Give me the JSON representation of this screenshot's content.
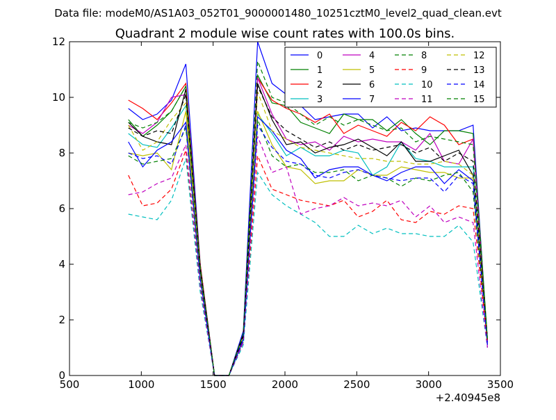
{
  "supertitle": "Data file: modeM0/AS1A03_052T01_9000001480_10251cztM0_level2_quad_clean.evt",
  "chart_data": {
    "type": "line",
    "title": "Quadrant 2 module wise count rates with 100.0s bins.",
    "xlabel": "",
    "ylabel": "",
    "x_offset_label": "+2.40945e8",
    "xlim": [
      500,
      3500
    ],
    "ylim": [
      0,
      12
    ],
    "x_ticks": [
      "500",
      "1000",
      "1500",
      "2000",
      "2500",
      "3000",
      "3500"
    ],
    "y_ticks": [
      "0",
      "2",
      "4",
      "6",
      "8",
      "10",
      "12"
    ],
    "grid": false,
    "legend_placement": "top-right",
    "x": [
      910,
      1010,
      1110,
      1210,
      1310,
      1410,
      1510,
      1610,
      1710,
      1810,
      1910,
      2010,
      2110,
      2210,
      2310,
      2410,
      2510,
      2610,
      2710,
      2810,
      2910,
      3010,
      3110,
      3210,
      3310,
      3410
    ],
    "series": [
      {
        "name": "0",
        "color": "#0000ff",
        "dash": "solid",
        "values": [
          9.6,
          9.2,
          9.4,
          9.9,
          11.2,
          4.0,
          0.0,
          0.0,
          1.6,
          12.0,
          10.5,
          10.1,
          9.7,
          9.2,
          9.3,
          9.4,
          9.4,
          8.9,
          9.3,
          8.8,
          8.9,
          8.8,
          8.8,
          8.8,
          9.0,
          1.2
        ]
      },
      {
        "name": "1",
        "color": "#008000",
        "dash": "solid",
        "values": [
          9.2,
          8.6,
          9.0,
          9.5,
          10.4,
          3.9,
          0.0,
          0.0,
          1.4,
          10.8,
          9.8,
          9.7,
          9.1,
          8.9,
          8.7,
          9.4,
          9.2,
          9.2,
          8.8,
          9.2,
          8.7,
          8.3,
          8.8,
          8.8,
          8.7,
          1.3
        ]
      },
      {
        "name": "2",
        "color": "#ff0000",
        "dash": "solid",
        "values": [
          9.9,
          9.6,
          9.2,
          9.8,
          10.5,
          4.0,
          0.0,
          0.0,
          1.5,
          10.7,
          9.9,
          9.6,
          9.4,
          9.1,
          9.4,
          8.7,
          9.0,
          8.8,
          8.6,
          9.1,
          8.8,
          9.3,
          9.0,
          8.3,
          8.5,
          1.1
        ]
      },
      {
        "name": "3",
        "color": "#00bfbf",
        "dash": "solid",
        "values": [
          8.7,
          8.3,
          8.2,
          8.9,
          9.7,
          3.6,
          0.0,
          0.0,
          1.3,
          9.4,
          8.7,
          7.9,
          8.2,
          7.9,
          7.9,
          8.1,
          8.0,
          7.2,
          7.5,
          8.4,
          7.8,
          7.7,
          7.5,
          7.5,
          7.5,
          1.1
        ]
      },
      {
        "name": "4",
        "color": "#bf00bf",
        "dash": "solid",
        "values": [
          9.0,
          8.7,
          9.1,
          10.0,
          10.1,
          3.9,
          0.0,
          0.0,
          1.5,
          10.7,
          9.4,
          8.5,
          8.3,
          8.4,
          8.1,
          8.6,
          8.4,
          8.5,
          8.4,
          8.4,
          8.1,
          8.7,
          7.7,
          7.6,
          8.5,
          1.0
        ]
      },
      {
        "name": "5",
        "color": "#bfbf00",
        "dash": "solid",
        "values": [
          8.0,
          7.9,
          8.0,
          7.4,
          9.5,
          3.6,
          0.0,
          0.0,
          1.3,
          9.5,
          8.3,
          7.5,
          7.4,
          6.9,
          7.0,
          7.0,
          7.4,
          7.2,
          7.2,
          7.5,
          7.4,
          7.3,
          7.3,
          7.1,
          7.1,
          1.2
        ]
      },
      {
        "name": "6",
        "color": "#000000",
        "dash": "solid",
        "values": [
          9.1,
          8.6,
          8.4,
          8.3,
          10.3,
          3.9,
          0.0,
          0.0,
          1.5,
          10.5,
          9.2,
          8.3,
          8.4,
          8.0,
          8.2,
          8.3,
          8.5,
          8.2,
          7.9,
          8.4,
          7.7,
          7.7,
          7.9,
          8.1,
          7.2,
          1.3
        ]
      },
      {
        "name": "7",
        "color": "#0000ff",
        "dash": "solid",
        "values": [
          8.4,
          7.5,
          8.1,
          8.4,
          9.1,
          3.5,
          0.0,
          0.0,
          1.3,
          9.3,
          8.8,
          8.1,
          7.8,
          7.1,
          7.4,
          7.5,
          7.5,
          7.2,
          7.0,
          7.3,
          7.5,
          7.5,
          6.9,
          7.4,
          7.0,
          1.2
        ]
      },
      {
        "name": "8",
        "color": "#008000",
        "dash": "dashed",
        "values": [
          7.9,
          7.6,
          7.7,
          7.8,
          8.9,
          3.4,
          0.0,
          0.0,
          1.2,
          9.2,
          7.9,
          7.5,
          7.6,
          7.3,
          7.3,
          7.4,
          7.0,
          7.2,
          7.1,
          6.8,
          7.1,
          7.0,
          7.2,
          7.3,
          6.6,
          1.2
        ]
      },
      {
        "name": "9",
        "color": "#ff0000",
        "dash": "dashed",
        "values": [
          7.2,
          6.1,
          6.2,
          6.7,
          8.1,
          3.1,
          0.0,
          0.0,
          1.2,
          7.9,
          6.7,
          6.5,
          6.3,
          6.2,
          6.1,
          6.3,
          5.7,
          5.9,
          6.3,
          5.6,
          5.5,
          5.9,
          5.8,
          6.1,
          6.0,
          1.2
        ]
      },
      {
        "name": "10",
        "color": "#00bfbf",
        "dash": "dashed",
        "values": [
          5.8,
          5.7,
          5.6,
          6.3,
          7.8,
          3.0,
          0.0,
          0.0,
          1.1,
          7.3,
          6.5,
          6.1,
          5.8,
          5.5,
          5.0,
          5.0,
          5.4,
          5.1,
          5.3,
          5.1,
          5.1,
          5.0,
          5.0,
          5.4,
          4.8,
          1.0
        ]
      },
      {
        "name": "11",
        "color": "#bf00bf",
        "dash": "dashed",
        "values": [
          6.5,
          6.6,
          6.9,
          7.1,
          8.3,
          3.2,
          0.0,
          0.0,
          1.2,
          8.6,
          7.3,
          7.5,
          5.8,
          6.0,
          6.1,
          6.4,
          6.1,
          6.2,
          6.1,
          6.3,
          5.7,
          6.1,
          5.5,
          5.7,
          5.5,
          1.0
        ]
      },
      {
        "name": "12",
        "color": "#bfbf00",
        "dash": "dashed",
        "values": [
          9.0,
          8.1,
          8.4,
          9.2,
          9.8,
          3.7,
          0.0,
          0.0,
          1.4,
          10.2,
          8.8,
          8.5,
          8.2,
          8.1,
          8.0,
          7.9,
          7.8,
          7.8,
          7.7,
          7.7,
          7.6,
          7.6,
          7.7,
          7.6,
          7.2,
          1.3
        ]
      },
      {
        "name": "13",
        "color": "#000000",
        "dash": "dashed",
        "values": [
          8.9,
          8.6,
          8.8,
          8.7,
          10.1,
          3.8,
          0.0,
          0.0,
          1.4,
          10.4,
          9.3,
          8.8,
          8.5,
          8.2,
          8.4,
          8.1,
          8.3,
          8.1,
          8.2,
          8.3,
          8.0,
          8.2,
          7.7,
          8.0,
          7.7,
          1.3
        ]
      },
      {
        "name": "14",
        "color": "#0000ff",
        "dash": "dashed",
        "values": [
          8.0,
          7.8,
          7.9,
          7.6,
          9.0,
          3.5,
          0.0,
          0.0,
          1.3,
          9.0,
          8.2,
          7.7,
          7.6,
          7.2,
          7.1,
          7.3,
          7.4,
          7.2,
          7.1,
          7.0,
          7.1,
          7.1,
          6.6,
          7.2,
          6.9,
          1.1
        ]
      },
      {
        "name": "15",
        "color": "#008000",
        "dash": "dashed",
        "values": [
          9.1,
          8.9,
          9.1,
          9.5,
          10.4,
          3.9,
          0.0,
          0.0,
          1.5,
          11.3,
          10.0,
          9.8,
          9.4,
          9.0,
          9.3,
          9.0,
          9.2,
          9.0,
          8.8,
          8.9,
          8.4,
          8.6,
          8.5,
          8.4,
          8.3,
          1.3
        ]
      }
    ]
  }
}
